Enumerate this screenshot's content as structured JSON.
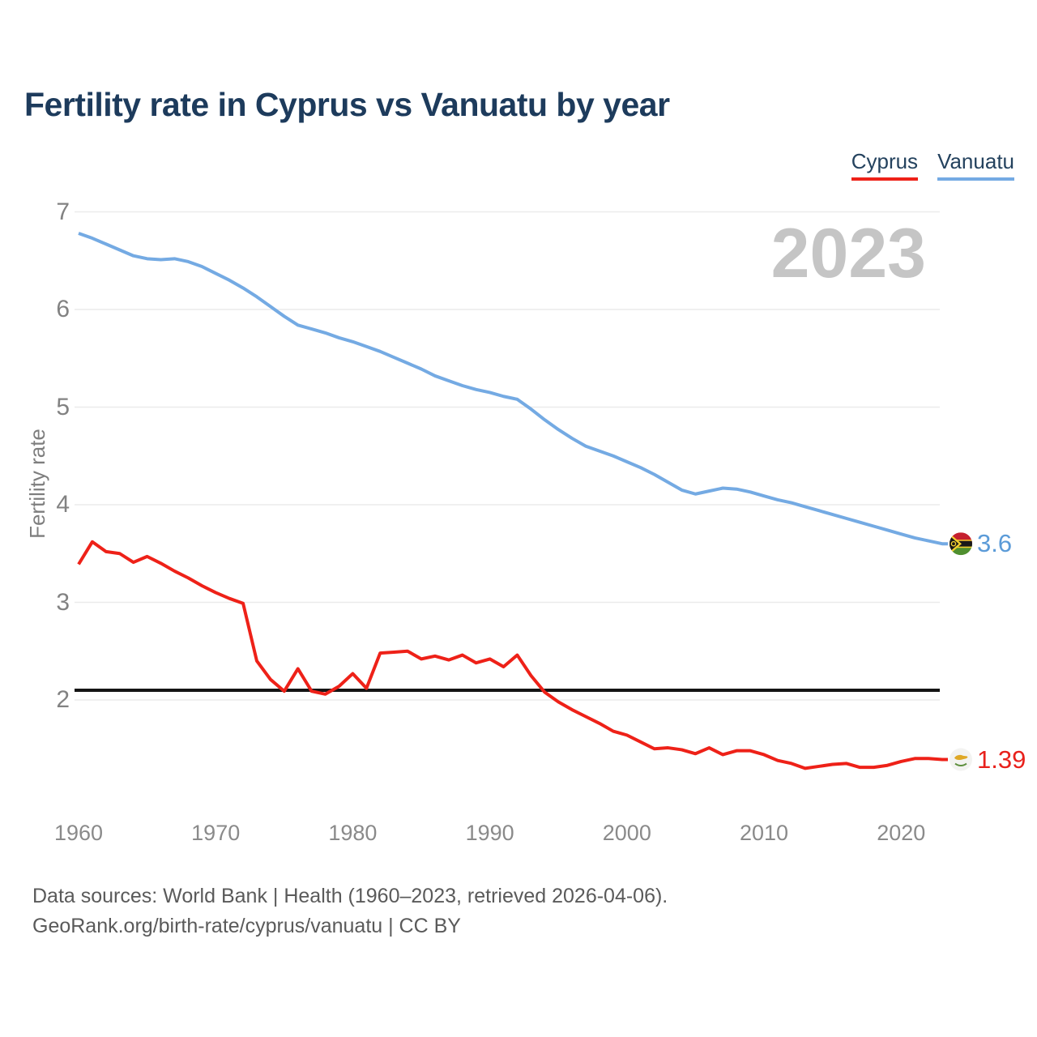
{
  "page": {
    "title": "Fertility rate in Cyprus vs Vanuatu by year",
    "watermark_year": "2023"
  },
  "legend": {
    "items": [
      {
        "label": "Cyprus",
        "color": "#ee2118"
      },
      {
        "label": "Vanuatu",
        "color": "#74aae3"
      }
    ]
  },
  "y_axis": {
    "label": "Fertility rate",
    "ticks": [
      "7",
      "6",
      "5",
      "4",
      "3",
      "2"
    ]
  },
  "x_axis": {
    "ticks": [
      "1960",
      "1970",
      "1980",
      "1990",
      "2000",
      "2010",
      "2020"
    ]
  },
  "annotations": {
    "replacement_line_value": 2.1,
    "end_labels": [
      {
        "series": "Vanuatu",
        "text": "3.6",
        "value": 3.6,
        "color": "#5b9bd8",
        "flag": "vanuatu-flag"
      },
      {
        "series": "Cyprus",
        "text": "1.39",
        "value": 1.39,
        "color": "#e8211c",
        "flag": "cyprus-flag"
      }
    ]
  },
  "footer": {
    "line1": "Data sources: World Bank | Health (1960–2023, retrieved 2026-04-06).",
    "line2": "GeoRank.org/birth-rate/cyprus/vanuatu | CC BY"
  },
  "chart_data": {
    "type": "line",
    "title": "Fertility rate in Cyprus vs Vanuatu by year",
    "xlabel": "",
    "ylabel": "Fertility rate",
    "grid": "horizontal",
    "legend_position": "top-right",
    "x_range": [
      1960,
      2023
    ],
    "y_gridlines": [
      2,
      3,
      4,
      5,
      6,
      7
    ],
    "reference_line": 2.1,
    "years": [
      1960,
      1961,
      1962,
      1963,
      1964,
      1965,
      1966,
      1967,
      1968,
      1969,
      1970,
      1971,
      1972,
      1973,
      1974,
      1975,
      1976,
      1977,
      1978,
      1979,
      1980,
      1981,
      1982,
      1983,
      1984,
      1985,
      1986,
      1987,
      1988,
      1989,
      1990,
      1991,
      1992,
      1993,
      1994,
      1995,
      1996,
      1997,
      1998,
      1999,
      2000,
      2001,
      2002,
      2003,
      2004,
      2005,
      2006,
      2007,
      2008,
      2009,
      2010,
      2011,
      2012,
      2013,
      2014,
      2015,
      2016,
      2017,
      2018,
      2019,
      2020,
      2021,
      2022,
      2023
    ],
    "series": [
      {
        "name": "Cyprus",
        "color": "#ee2118",
        "final_value": 1.39,
        "values": [
          3.39,
          3.62,
          3.52,
          3.5,
          3.41,
          3.47,
          3.4,
          3.32,
          3.25,
          3.17,
          3.1,
          3.04,
          2.99,
          2.4,
          2.21,
          2.09,
          2.32,
          2.09,
          2.06,
          2.14,
          2.27,
          2.12,
          2.48,
          2.49,
          2.5,
          2.42,
          2.45,
          2.41,
          2.46,
          2.38,
          2.42,
          2.34,
          2.46,
          2.25,
          2.08,
          1.98,
          1.9,
          1.83,
          1.76,
          1.68,
          1.64,
          1.57,
          1.5,
          1.51,
          1.49,
          1.45,
          1.51,
          1.44,
          1.48,
          1.48,
          1.44,
          1.38,
          1.35,
          1.3,
          1.32,
          1.34,
          1.35,
          1.31,
          1.31,
          1.33,
          1.37,
          1.4,
          1.4,
          1.39
        ]
      },
      {
        "name": "Vanuatu",
        "color": "#74aae3",
        "final_value": 3.6,
        "values": [
          6.78,
          6.73,
          6.67,
          6.61,
          6.55,
          6.52,
          6.51,
          6.52,
          6.49,
          6.44,
          6.37,
          6.3,
          6.22,
          6.13,
          6.03,
          5.93,
          5.84,
          5.8,
          5.76,
          5.71,
          5.67,
          5.62,
          5.57,
          5.51,
          5.45,
          5.39,
          5.32,
          5.27,
          5.22,
          5.18,
          5.15,
          5.11,
          5.08,
          4.98,
          4.87,
          4.77,
          4.68,
          4.6,
          4.55,
          4.5,
          4.44,
          4.38,
          4.31,
          4.23,
          4.15,
          4.11,
          4.14,
          4.17,
          4.16,
          4.13,
          4.09,
          4.05,
          4.02,
          3.98,
          3.94,
          3.9,
          3.86,
          3.82,
          3.78,
          3.74,
          3.7,
          3.66,
          3.63,
          3.6
        ]
      }
    ]
  }
}
